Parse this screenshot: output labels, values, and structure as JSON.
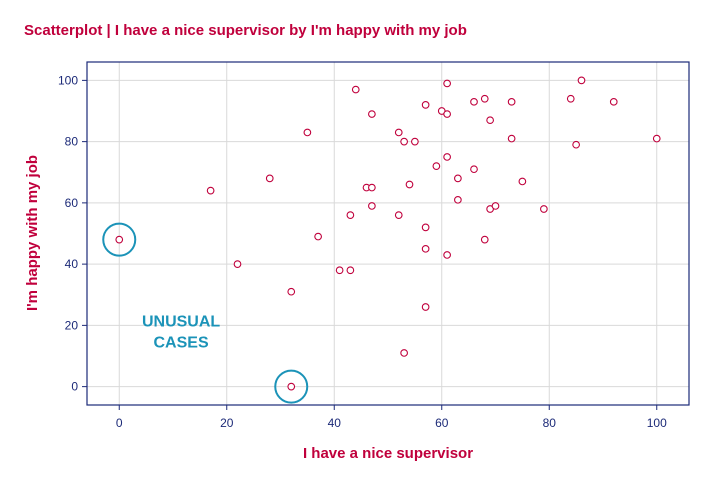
{
  "chart_data": {
    "type": "scatter",
    "title": "Scatterplot | I have a nice supervisor by I'm happy with my job",
    "xlabel": "I have a nice supervisor",
    "ylabel": "I'm happy with my job",
    "xlim": [
      -6,
      106
    ],
    "ylim": [
      -6,
      106
    ],
    "xticks": [
      0,
      20,
      40,
      60,
      80,
      100
    ],
    "yticks": [
      0,
      20,
      40,
      60,
      80,
      100
    ],
    "grid": true,
    "colors": {
      "title": "#c0003c",
      "points": "#c0003c",
      "axis": "#1c2a78",
      "grid": "#d9d9d9",
      "highlight": "#1b93b8"
    },
    "points": [
      {
        "x": 0,
        "y": 48
      },
      {
        "x": 17,
        "y": 64
      },
      {
        "x": 22,
        "y": 40
      },
      {
        "x": 28,
        "y": 68
      },
      {
        "x": 32,
        "y": 31
      },
      {
        "x": 32,
        "y": 0
      },
      {
        "x": 35,
        "y": 83
      },
      {
        "x": 37,
        "y": 49
      },
      {
        "x": 41,
        "y": 38
      },
      {
        "x": 43,
        "y": 38
      },
      {
        "x": 43,
        "y": 56
      },
      {
        "x": 44,
        "y": 97
      },
      {
        "x": 46,
        "y": 65
      },
      {
        "x": 47,
        "y": 65
      },
      {
        "x": 47,
        "y": 89
      },
      {
        "x": 47,
        "y": 59
      },
      {
        "x": 52,
        "y": 83
      },
      {
        "x": 52,
        "y": 56
      },
      {
        "x": 53,
        "y": 80
      },
      {
        "x": 53,
        "y": 11
      },
      {
        "x": 54,
        "y": 66
      },
      {
        "x": 55,
        "y": 80
      },
      {
        "x": 57,
        "y": 92
      },
      {
        "x": 57,
        "y": 52
      },
      {
        "x": 57,
        "y": 45
      },
      {
        "x": 57,
        "y": 26
      },
      {
        "x": 59,
        "y": 72
      },
      {
        "x": 60,
        "y": 90
      },
      {
        "x": 61,
        "y": 99
      },
      {
        "x": 61,
        "y": 89
      },
      {
        "x": 61,
        "y": 75
      },
      {
        "x": 61,
        "y": 43
      },
      {
        "x": 63,
        "y": 68
      },
      {
        "x": 63,
        "y": 61
      },
      {
        "x": 66,
        "y": 93
      },
      {
        "x": 66,
        "y": 71
      },
      {
        "x": 68,
        "y": 94
      },
      {
        "x": 68,
        "y": 48
      },
      {
        "x": 69,
        "y": 87
      },
      {
        "x": 69,
        "y": 58
      },
      {
        "x": 70,
        "y": 59
      },
      {
        "x": 73,
        "y": 93
      },
      {
        "x": 73,
        "y": 81
      },
      {
        "x": 75,
        "y": 67
      },
      {
        "x": 79,
        "y": 58
      },
      {
        "x": 84,
        "y": 94
      },
      {
        "x": 85,
        "y": 79
      },
      {
        "x": 86,
        "y": 100
      },
      {
        "x": 92,
        "y": 93
      },
      {
        "x": 100,
        "y": 81
      }
    ],
    "highlighted_points": [
      {
        "x": 0,
        "y": 48
      },
      {
        "x": 32,
        "y": 0
      }
    ],
    "annotation": {
      "lines": [
        "UNUSUAL",
        "CASES"
      ],
      "at": {
        "x": 11.5,
        "y": 19
      }
    }
  }
}
